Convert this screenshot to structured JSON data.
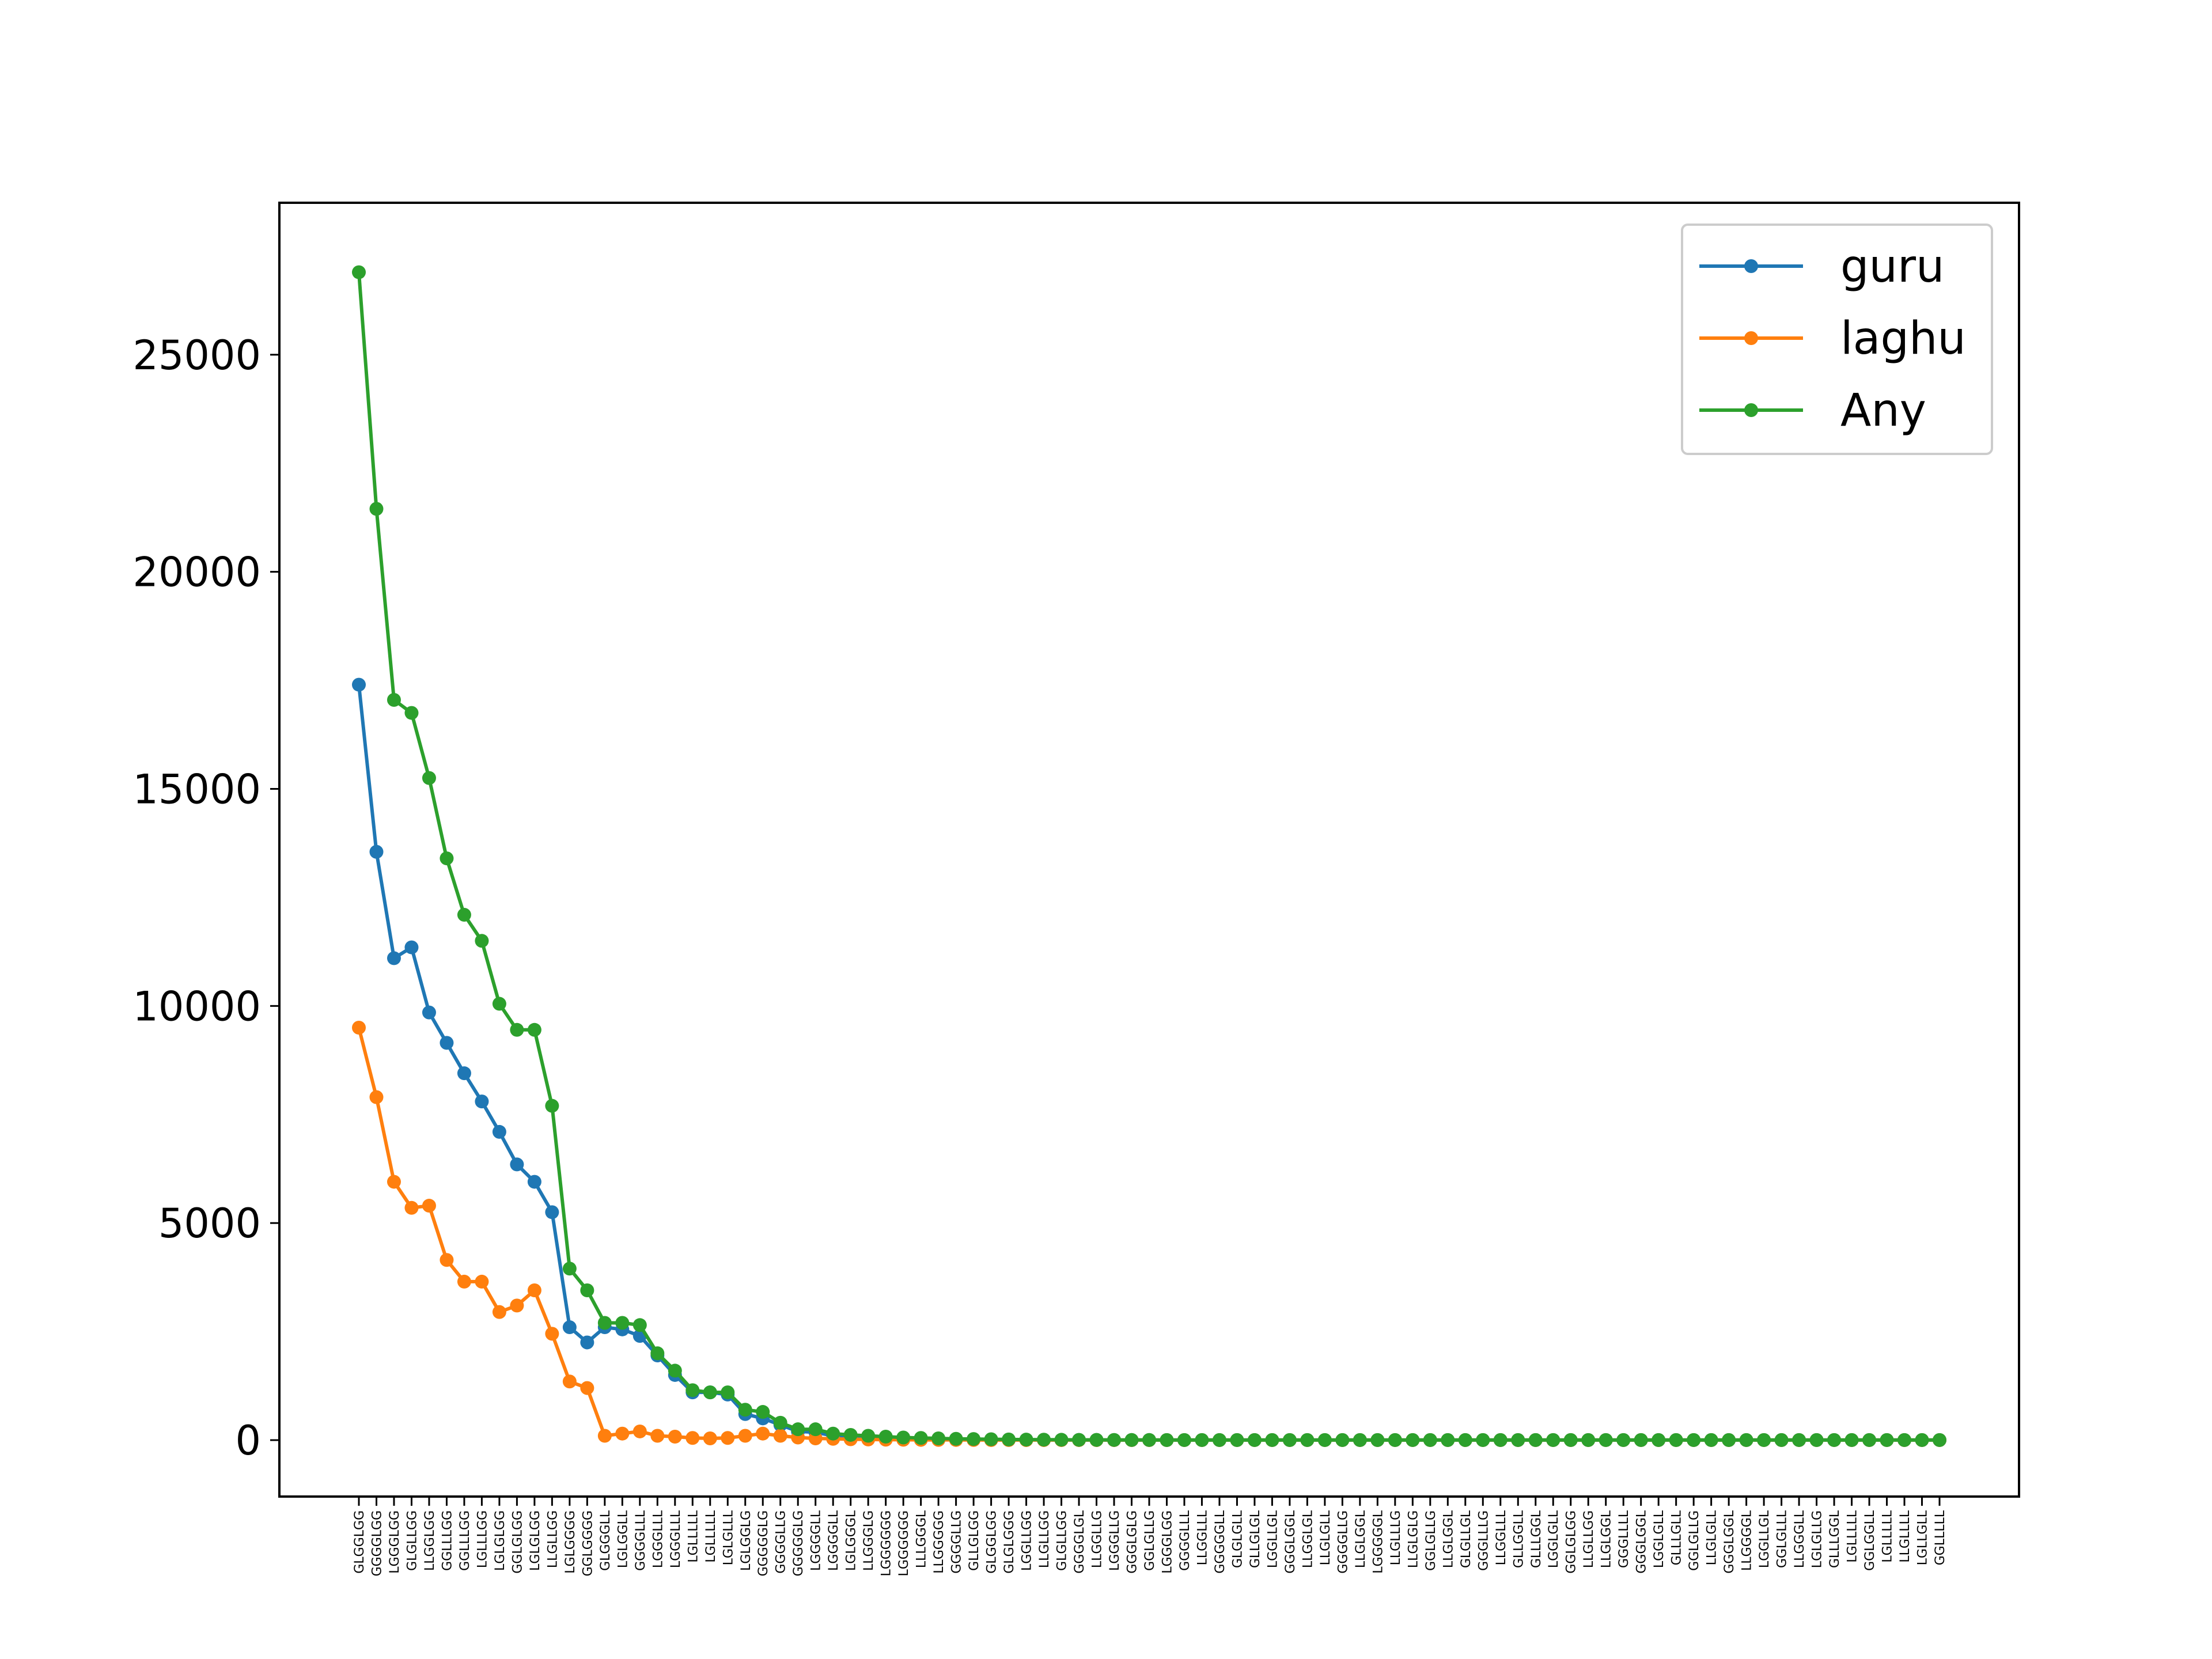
{
  "chart_data": {
    "type": "line",
    "title": "",
    "xlabel": "",
    "ylabel": "",
    "ylim": [
      -1300,
      28500
    ],
    "yticks": [
      0,
      5000,
      10000,
      15000,
      20000,
      25000
    ],
    "grid": false,
    "legend": "top-right",
    "categories": [
      "GLGGLGG",
      "GGGGLGG",
      "LGGGLGG",
      "GLGLLGG",
      "LLGGLGG",
      "GGLLLGG",
      "GGLLLGG",
      "LGLLLGG",
      "LGLGLGG",
      "GGLGLGG",
      "LGLGLGG",
      "LLGLLGG",
      "LGLGGGG",
      "GGLGGGG",
      "GLGGGLL",
      "LGLGGLL",
      "GGGGLLL",
      "LGGGLLL",
      "LGGGLLL",
      "LGLLLLL",
      "LGLLLLL",
      "LGLGLLL",
      "LGLGGLG",
      "GGGGGLG",
      "GGGGLLG",
      "GGGGGLG",
      "LGGGGLL",
      "LGGGGLL",
      "LGLGGGL",
      "LLGGGLG",
      "LGGGGGG",
      "LGGGGGG",
      "LLLGGGL",
      "LLGGGGG",
      "GGGGLLG",
      "GLLGLGG",
      "GLGGLGG",
      "GLGLGGG",
      "LGGLLGG",
      "LLGLLGG",
      "GLGLLGG",
      "GGGGLGL",
      "LLGGLLG",
      "LGGGLLG",
      "GGGLGLG",
      "GGLGLLG",
      "LGGGLGG",
      "GGGGLLL",
      "LLGGLLL",
      "GGGGGLL",
      "GLGLGLL",
      "GLLGLGL",
      "LGGLLGL",
      "GGGLGGL",
      "LLGGLGL",
      "LLGLGLL",
      "GGGGLLG",
      "LLGLGGL",
      "LGGGGGL",
      "LLGLLLG",
      "LLGLGLG",
      "GGLGLLG",
      "LLGLGGL",
      "GLGLLGL",
      "GGGLLLG",
      "LLGGLLL",
      "GLLGGLL",
      "GLLLGGL",
      "LGGLGLL",
      "GGLGLGG",
      "LLGLLGG",
      "LLGLGGL",
      "GGGLLLL",
      "GGGLGGL",
      "LGGLGLL",
      "GLLLGLL",
      "GGLGLLG",
      "LLGLGLL",
      "GGGLGGL",
      "LLGGGGL",
      "LGGLLGL",
      "GGLGLLL",
      "LLGGGLL",
      "LGLGLLG",
      "GLLLGGL",
      "LGLLLLL",
      "GGLGGLL",
      "LGLLLLL",
      "LLGLLLL",
      "LGLLGLL",
      "GGLLLLL"
    ],
    "series": [
      {
        "name": "guru",
        "color": "#1f77b4",
        "values": [
          17400,
          13550,
          11100,
          11350,
          9850,
          9150,
          8450,
          7800,
          7100,
          6350,
          5950,
          5250,
          2600,
          2250,
          2600,
          2550,
          2400,
          1950,
          1500,
          1100,
          1100,
          1050,
          600,
          500,
          350,
          200,
          180,
          100,
          80,
          60,
          50,
          40,
          30,
          25,
          20,
          15,
          12,
          10,
          8,
          6,
          5,
          4,
          3,
          2,
          2,
          2,
          1,
          1,
          1,
          1,
          1,
          1,
          1,
          1,
          1,
          1,
          1,
          1,
          1,
          1,
          1,
          1,
          1,
          1,
          1,
          1,
          1,
          1,
          1,
          1,
          1,
          1,
          1,
          1,
          1,
          1,
          1,
          1,
          1,
          1,
          1,
          1,
          1,
          1,
          1,
          1,
          1,
          1,
          1,
          1,
          1
        ]
      },
      {
        "name": "laghu",
        "color": "#ff7f0e",
        "values": [
          9500,
          7900,
          5950,
          5350,
          5400,
          4150,
          3650,
          3650,
          2950,
          3100,
          3450,
          2450,
          1350,
          1200,
          100,
          150,
          200,
          100,
          80,
          50,
          40,
          50,
          100,
          150,
          100,
          60,
          40,
          30,
          20,
          15,
          10,
          8,
          6,
          5,
          4,
          3,
          2,
          2,
          1,
          1,
          1,
          1,
          1,
          1,
          1,
          1,
          1,
          1,
          1,
          1,
          1,
          1,
          1,
          1,
          1,
          1,
          1,
          1,
          1,
          1,
          1,
          1,
          1,
          1,
          1,
          1,
          1,
          1,
          1,
          1,
          1,
          1,
          1,
          1,
          1,
          1,
          1,
          1,
          1,
          1,
          1,
          1,
          1,
          1,
          1,
          1,
          1,
          1,
          1,
          1,
          1
        ]
      },
      {
        "name": "Any",
        "color": "#2ca02c",
        "values": [
          26900,
          21450,
          17050,
          16750,
          15250,
          13400,
          12100,
          11500,
          10050,
          9450,
          9450,
          7700,
          3950,
          3450,
          2700,
          2700,
          2650,
          2000,
          1600,
          1150,
          1100,
          1100,
          700,
          650,
          400,
          250,
          250,
          150,
          120,
          100,
          80,
          60,
          50,
          40,
          30,
          25,
          20,
          15,
          12,
          10,
          8,
          6,
          5,
          4,
          3,
          3,
          2,
          2,
          2,
          2,
          2,
          2,
          2,
          2,
          2,
          2,
          2,
          2,
          2,
          2,
          2,
          2,
          2,
          2,
          2,
          2,
          2,
          2,
          2,
          2,
          2,
          2,
          2,
          2,
          2,
          2,
          2,
          2,
          2,
          2,
          2,
          2,
          2,
          2,
          2,
          2,
          2,
          2,
          2,
          2,
          2
        ]
      }
    ]
  }
}
